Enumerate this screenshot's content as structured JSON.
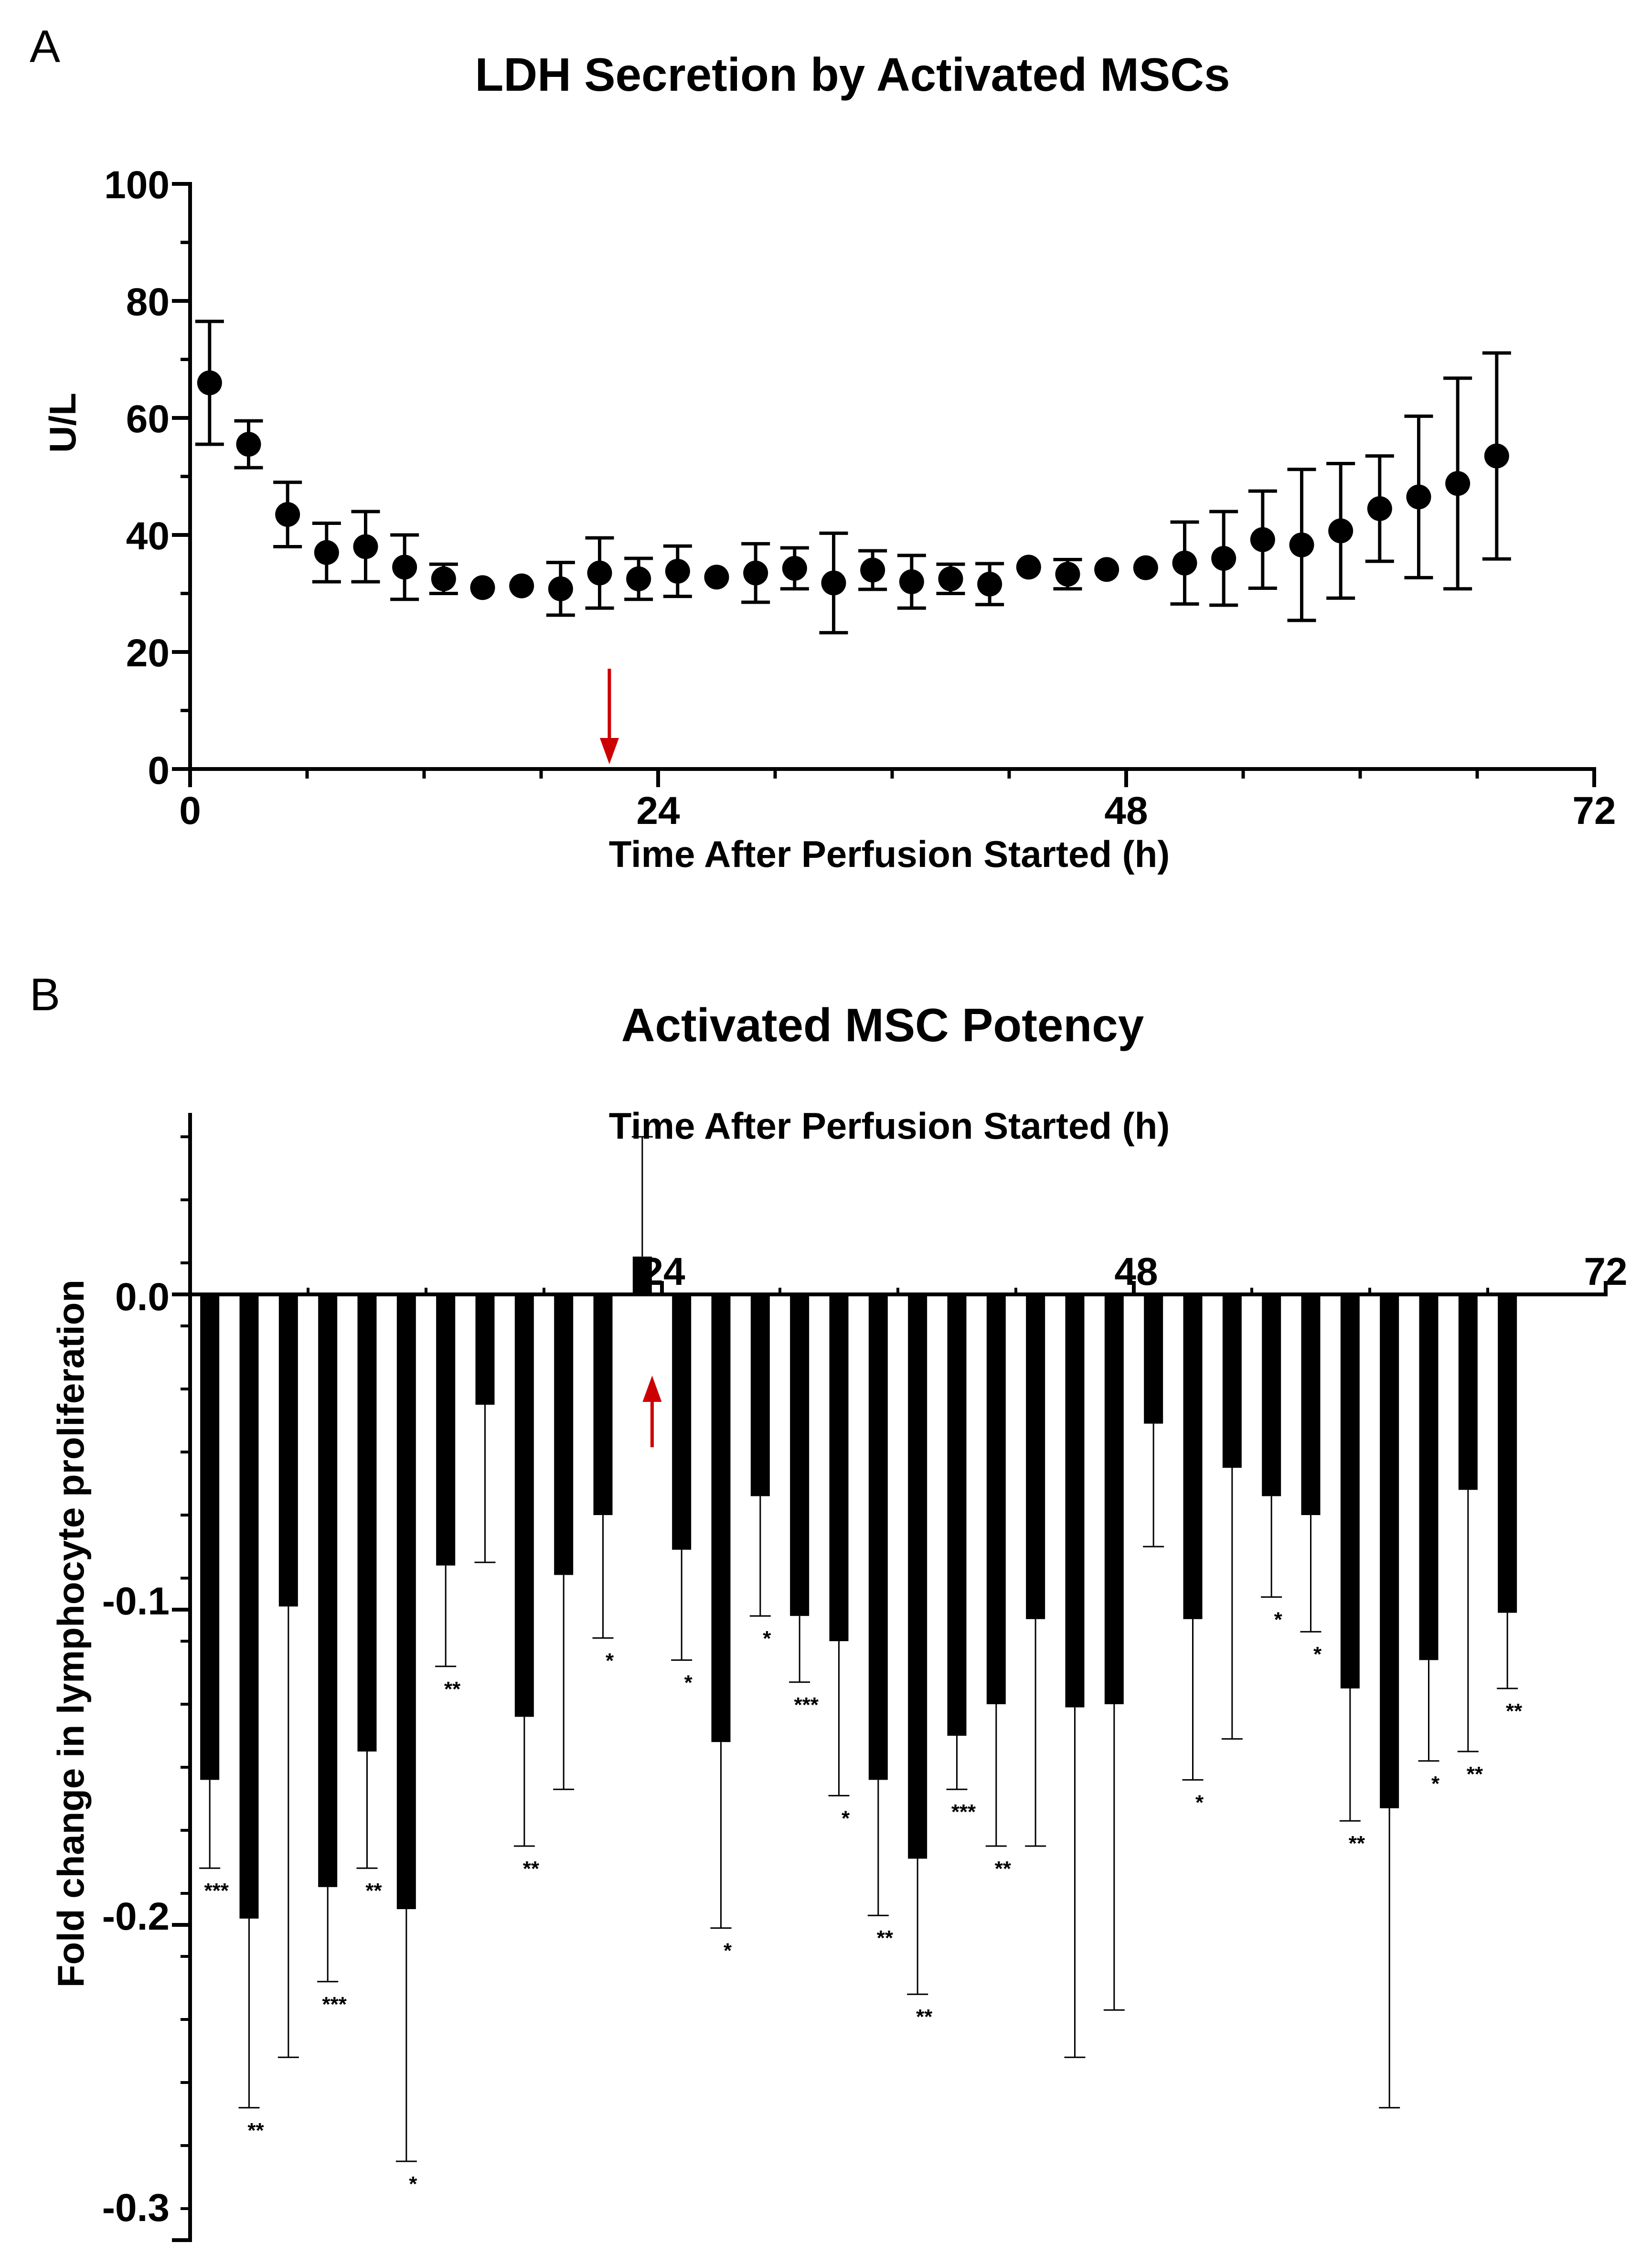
{
  "chart_data": [
    {
      "panel": "A",
      "type": "scatter",
      "title": "LDH Secretion by Activated MSCs",
      "xlabel": "Time After Perfusion Started (h)",
      "ylabel": "U/L",
      "xlim": [
        0,
        72
      ],
      "ylim": [
        0,
        100
      ],
      "xticks": [
        "0",
        "24",
        "48",
        "72"
      ],
      "yticks": [
        "0",
        "20",
        "40",
        "60",
        "80",
        "100"
      ],
      "arrow_x": 21.5,
      "accent_color": "#cc0000",
      "points": [
        {
          "x": 1,
          "y": 66,
          "err": 10.5
        },
        {
          "x": 3,
          "y": 55.5,
          "err": 4
        },
        {
          "x": 5,
          "y": 43.5,
          "err": 5.5
        },
        {
          "x": 7,
          "y": 37,
          "err": 5
        },
        {
          "x": 9,
          "y": 38,
          "err": 6
        },
        {
          "x": 11,
          "y": 34.5,
          "err": 5.5
        },
        {
          "x": 13,
          "y": 32.5,
          "err": 2.5
        },
        {
          "x": 15,
          "y": 31,
          "err": 0
        },
        {
          "x": 17,
          "y": 31.3,
          "err": 0
        },
        {
          "x": 19,
          "y": 30.8,
          "err": 4.5
        },
        {
          "x": 21,
          "y": 33.5,
          "err": 6
        },
        {
          "x": 23,
          "y": 32.5,
          "err": 3.5
        },
        {
          "x": 25,
          "y": 33.8,
          "err": 4.3
        },
        {
          "x": 27,
          "y": 32.8,
          "err": 0
        },
        {
          "x": 29,
          "y": 33.5,
          "err": 5
        },
        {
          "x": 31,
          "y": 34.3,
          "err": 3.5
        },
        {
          "x": 33,
          "y": 31.8,
          "err": 8.5
        },
        {
          "x": 35,
          "y": 34,
          "err": 3.3
        },
        {
          "x": 37,
          "y": 32,
          "err": 4.5
        },
        {
          "x": 39,
          "y": 32.5,
          "err": 2.5
        },
        {
          "x": 41,
          "y": 31.6,
          "err": 3.5
        },
        {
          "x": 43,
          "y": 34.5,
          "err": 0
        },
        {
          "x": 45,
          "y": 33.3,
          "err": 2.5
        },
        {
          "x": 47,
          "y": 34.1,
          "err": 0
        },
        {
          "x": 49,
          "y": 34.4,
          "err": 0
        },
        {
          "x": 51,
          "y": 35.2,
          "err": 7
        },
        {
          "x": 53,
          "y": 36,
          "err": 8
        },
        {
          "x": 55,
          "y": 39.2,
          "err": 8.3
        },
        {
          "x": 57,
          "y": 38.3,
          "err": 12.9
        },
        {
          "x": 59,
          "y": 40.7,
          "err": 11.5
        },
        {
          "x": 61,
          "y": 44.5,
          "err": 9
        },
        {
          "x": 63,
          "y": 46.5,
          "err": 13.8
        },
        {
          "x": 65,
          "y": 48.8,
          "err": 18
        },
        {
          "x": 67,
          "y": 53.5,
          "err": 17.6
        }
      ]
    },
    {
      "panel": "B",
      "type": "bar",
      "title": "Activated MSC Potency",
      "xlabel": "Time After Perfusion Started (h)",
      "ylabel": "Fold change in lymphocyte proliferation",
      "xlim": [
        0,
        72
      ],
      "ylim": [
        -0.3,
        0.06
      ],
      "xticks": [
        "24",
        "48",
        "72"
      ],
      "yticks": [
        "-0.3",
        "-0.2",
        "-0.1",
        "0.0"
      ],
      "arrow_x": 23.5,
      "accent_color": "#cc0000",
      "bars": [
        {
          "x": 1,
          "value": -0.154,
          "err": 0.028,
          "sig": "***"
        },
        {
          "x": 3,
          "value": -0.198,
          "err": 0.06,
          "sig": "**"
        },
        {
          "x": 5,
          "value": -0.099,
          "err": 0.143,
          "sig": ""
        },
        {
          "x": 7,
          "value": -0.188,
          "err": 0.03,
          "sig": "***"
        },
        {
          "x": 9,
          "value": -0.145,
          "err": 0.037,
          "sig": "**"
        },
        {
          "x": 11,
          "value": -0.195,
          "err": 0.08,
          "sig": "*"
        },
        {
          "x": 13,
          "value": -0.086,
          "err": 0.032,
          "sig": "**"
        },
        {
          "x": 15,
          "value": -0.035,
          "err": 0.05,
          "sig": ""
        },
        {
          "x": 17,
          "value": -0.134,
          "err": 0.041,
          "sig": "**"
        },
        {
          "x": 19,
          "value": -0.089,
          "err": 0.068,
          "sig": ""
        },
        {
          "x": 21,
          "value": -0.07,
          "err": 0.039,
          "sig": "*"
        },
        {
          "x": 23,
          "value": 0.012,
          "err": 0.038,
          "sig": ""
        },
        {
          "x": 25,
          "value": -0.081,
          "err": 0.035,
          "sig": "*"
        },
        {
          "x": 27,
          "value": -0.142,
          "err": 0.059,
          "sig": "*"
        },
        {
          "x": 29,
          "value": -0.064,
          "err": 0.038,
          "sig": "*"
        },
        {
          "x": 31,
          "value": -0.102,
          "err": 0.021,
          "sig": "***"
        },
        {
          "x": 33,
          "value": -0.11,
          "err": 0.049,
          "sig": "*"
        },
        {
          "x": 35,
          "value": -0.154,
          "err": 0.043,
          "sig": "**"
        },
        {
          "x": 37,
          "value": -0.179,
          "err": 0.043,
          "sig": "**"
        },
        {
          "x": 39,
          "value": -0.14,
          "err": 0.017,
          "sig": "***"
        },
        {
          "x": 41,
          "value": -0.13,
          "err": 0.045,
          "sig": "**"
        },
        {
          "x": 43,
          "value": -0.103,
          "err": 0.072,
          "sig": ""
        },
        {
          "x": 45,
          "value": -0.131,
          "err": 0.111,
          "sig": ""
        },
        {
          "x": 47,
          "value": -0.13,
          "err": 0.097,
          "sig": ""
        },
        {
          "x": 49,
          "value": -0.041,
          "err": 0.039,
          "sig": ""
        },
        {
          "x": 51,
          "value": -0.103,
          "err": 0.051,
          "sig": "*"
        },
        {
          "x": 53,
          "value": -0.055,
          "err": 0.086,
          "sig": ""
        },
        {
          "x": 55,
          "value": -0.064,
          "err": 0.032,
          "sig": "*"
        },
        {
          "x": 57,
          "value": -0.07,
          "err": 0.037,
          "sig": "*"
        },
        {
          "x": 59,
          "value": -0.125,
          "err": 0.042,
          "sig": "**"
        },
        {
          "x": 61,
          "value": -0.163,
          "err": 0.095,
          "sig": ""
        },
        {
          "x": 63,
          "value": -0.116,
          "err": 0.032,
          "sig": "*"
        },
        {
          "x": 65,
          "value": -0.062,
          "err": 0.083,
          "sig": "**"
        },
        {
          "x": 67,
          "value": -0.101,
          "err": 0.024,
          "sig": "**"
        }
      ]
    }
  ]
}
